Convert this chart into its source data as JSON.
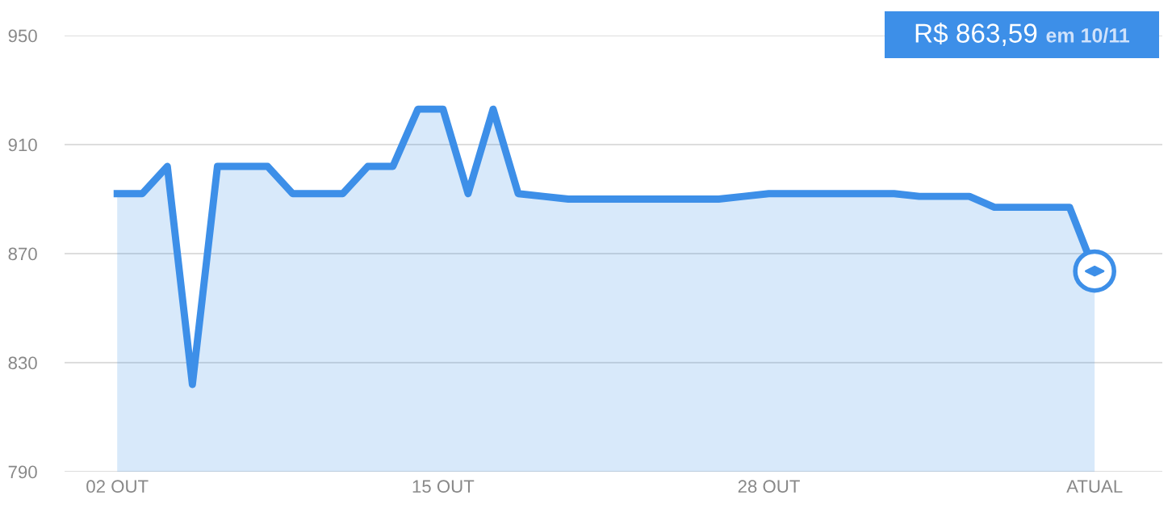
{
  "chart_data": {
    "type": "area",
    "categories": [
      "02 OUT",
      null,
      null,
      null,
      null,
      null,
      null,
      null,
      null,
      null,
      null,
      null,
      null,
      "15 OUT",
      null,
      null,
      null,
      null,
      null,
      null,
      null,
      null,
      null,
      null,
      null,
      null,
      "28 OUT",
      null,
      null,
      null,
      null,
      null,
      null,
      null,
      null,
      null,
      null,
      null,
      null,
      "ATUAL"
    ],
    "series": [
      {
        "color": "#3d8fe8",
        "values": [
          892,
          892,
          902,
          822,
          902,
          902,
          902,
          892,
          892,
          892,
          902,
          902,
          923,
          923,
          892,
          923,
          892,
          891,
          890,
          890,
          890,
          890,
          890,
          890,
          890,
          891,
          892,
          892,
          892,
          892,
          892,
          892,
          891,
          891,
          891,
          887,
          887,
          887,
          887,
          863.59
        ]
      }
    ],
    "ylim": [
      790,
      950
    ],
    "yticks": [
      790,
      830,
      870,
      910,
      950
    ],
    "grid": "y",
    "legend": false,
    "marker": "none",
    "line_style": "solid",
    "annotations": [
      "R$ 863,59",
      "em 10/11"
    ]
  }
}
